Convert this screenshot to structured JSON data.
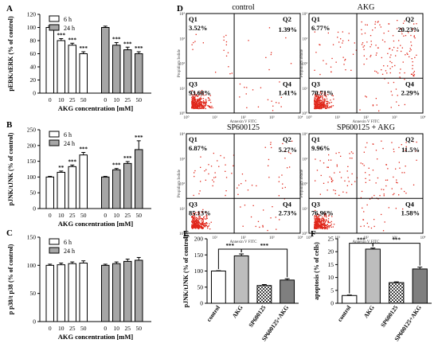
{
  "chart_data": [
    {
      "panel": "A",
      "type": "bar",
      "ylabel": "pERK/tERK (% of control)",
      "xlabel": "AKG concentration [mM]",
      "ylim": [
        0,
        120
      ],
      "yticks": [
        0,
        20,
        40,
        60,
        80,
        100,
        120
      ],
      "categories": [
        "0",
        "10",
        "25",
        "50"
      ],
      "legend": [
        {
          "name": "6 h",
          "color": "#ffffff"
        },
        {
          "name": "24 h",
          "color": "#a6a6a6"
        }
      ],
      "series": [
        {
          "name": "6 h",
          "values": [
            100,
            80,
            73,
            60
          ],
          "errors": [
            2,
            3,
            3,
            3
          ],
          "sig": [
            "",
            "***",
            "***",
            "***"
          ]
        },
        {
          "name": "24 h",
          "values": [
            100,
            73,
            66,
            60
          ],
          "errors": [
            2,
            4,
            4,
            3
          ],
          "sig": [
            "",
            "***",
            "***",
            "***"
          ]
        }
      ]
    },
    {
      "panel": "B",
      "type": "bar",
      "ylabel": "pJNK/tJNK (% of control)",
      "xlabel": "AKG concentration [mM]",
      "ylim": [
        0,
        250
      ],
      "yticks": [
        0,
        50,
        100,
        150,
        200,
        250
      ],
      "categories": [
        "0",
        "10",
        "25",
        "50"
      ],
      "legend": [
        {
          "name": "6 h",
          "color": "#ffffff"
        },
        {
          "name": "24 h",
          "color": "#a6a6a6"
        }
      ],
      "series": [
        {
          "name": "6 h",
          "values": [
            100,
            115,
            133,
            170
          ],
          "errors": [
            2,
            4,
            5,
            8
          ],
          "sig": [
            "",
            "**",
            "***",
            "***"
          ]
        },
        {
          "name": "24 h",
          "values": [
            100,
            123,
            143,
            187
          ],
          "errors": [
            2,
            4,
            6,
            28
          ],
          "sig": [
            "",
            "***",
            "***",
            "***"
          ]
        }
      ]
    },
    {
      "panel": "C",
      "type": "bar",
      "ylabel": "p p38/t p38 (% of control)",
      "xlabel": "AKG concentration [mM]",
      "ylim": [
        0,
        150
      ],
      "yticks": [
        0,
        50,
        100,
        150
      ],
      "categories": [
        "0",
        "10",
        "25",
        "50"
      ],
      "legend": [
        {
          "name": "6 h",
          "color": "#ffffff"
        },
        {
          "name": "24 h",
          "color": "#a6a6a6"
        }
      ],
      "series": [
        {
          "name": "6 h",
          "values": [
            100,
            101,
            103,
            104
          ],
          "errors": [
            2,
            3,
            3,
            4
          ],
          "sig": [
            "",
            "",
            "",
            ""
          ]
        },
        {
          "name": "24 h",
          "values": [
            100,
            103,
            107,
            109
          ],
          "errors": [
            2,
            3,
            4,
            5
          ],
          "sig": [
            "",
            "",
            "",
            ""
          ]
        }
      ]
    },
    {
      "panel": "D",
      "type": "scatter",
      "xlabel": "Annexin V FITC",
      "ylabel": "Propidium Iodide",
      "axis_ticks": [
        "10⁰",
        "10¹",
        "10²",
        "10³",
        "10⁴"
      ],
      "plots": [
        {
          "title": "control",
          "q1": "3.52%",
          "q2": "1.39%",
          "q3": "93.68%",
          "q4": "1.41%"
        },
        {
          "title": "AKG",
          "q1": "6.77%",
          "q2": "20.23%",
          "q3": "70.71%",
          "q4": "2.29%"
        },
        {
          "title": "SP600125",
          "q1": "6.87%",
          "q2": "5.27%",
          "q3": "85.13%",
          "q4": "2.73%"
        },
        {
          "title": "SP600125 + AKG",
          "q1": "9.96%",
          "q2": "11.5%",
          "q3": "76.96%",
          "q4": "1.58%"
        }
      ],
      "quadrant_labels": [
        "Q1",
        "Q2",
        "Q3",
        "Q4"
      ]
    },
    {
      "panel": "E",
      "type": "bar",
      "ylabel": "pJNK/tJNK (% of control)",
      "ylim": [
        0,
        200
      ],
      "yticks": [
        0,
        50,
        100,
        150,
        200
      ],
      "categories": [
        "control",
        "AKG",
        "SP600125",
        "SP600125+AKG"
      ],
      "values": [
        100,
        147,
        55,
        72
      ],
      "errors": [
        1,
        6,
        3,
        4
      ],
      "fills": [
        "white",
        "light",
        "checker",
        "gray"
      ],
      "brackets": [
        {
          "from": 0,
          "to": 1,
          "label": "***"
        },
        {
          "from": 1,
          "to": 3,
          "label": "***"
        }
      ]
    },
    {
      "panel": "F",
      "type": "bar",
      "ylabel": "apoptosis (% of cells)",
      "ylim": [
        0,
        25
      ],
      "yticks": [
        0,
        5,
        10,
        15,
        20,
        25
      ],
      "categories": [
        "control",
        "AKG",
        "SP600125",
        "SP600125+AKG"
      ],
      "values": [
        3,
        21,
        8,
        13.3
      ],
      "errors": [
        0.2,
        0.4,
        0.3,
        0.7
      ],
      "fills": [
        "white",
        "light",
        "checker",
        "gray"
      ],
      "brackets": [
        {
          "from": 0,
          "to": 1,
          "label": "***"
        },
        {
          "from": 1,
          "to": 3,
          "label": "***"
        }
      ]
    }
  ]
}
